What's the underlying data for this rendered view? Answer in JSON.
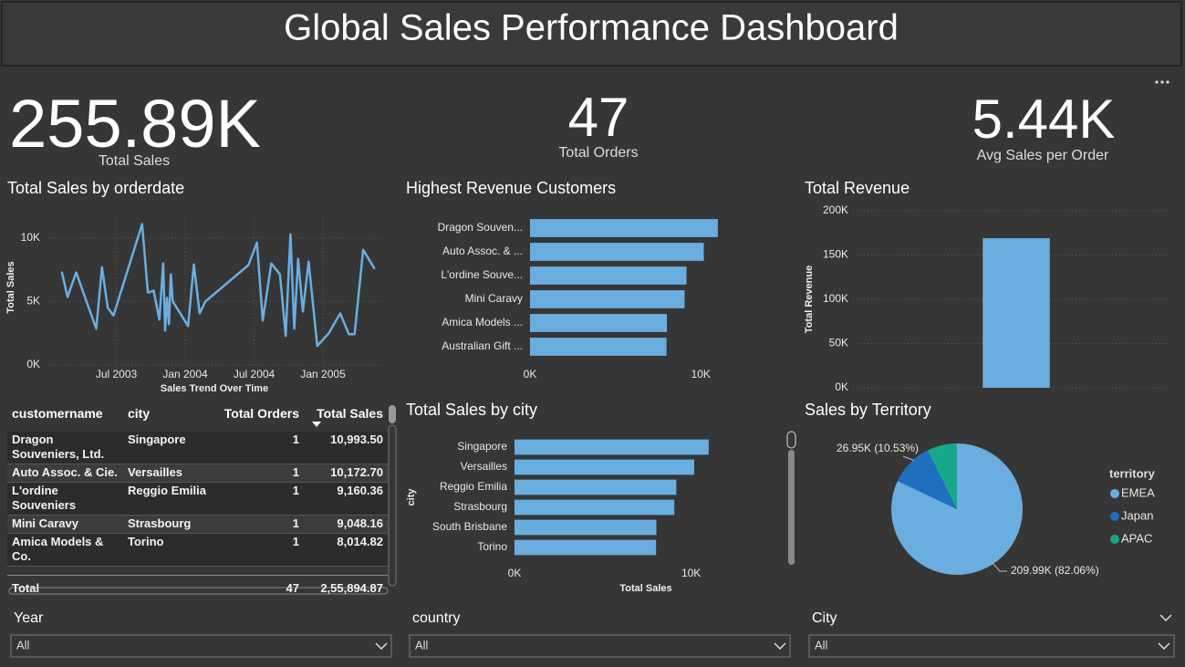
{
  "header": {
    "title": "Global Sales Performance Dashboard"
  },
  "kpis": [
    {
      "value": "255.89K",
      "label": "Total Sales"
    },
    {
      "value": "47",
      "label": "Total Orders"
    },
    {
      "value": "5.44K",
      "label": "Avg Sales per Order"
    }
  ],
  "chart_data": [
    {
      "type": "line",
      "title": "Total Sales by orderdate",
      "x_label": "Sales Trend Over Time",
      "y_label": "Total Sales",
      "color": "#6aaee0",
      "grid": true,
      "x": [
        "2003-02",
        "2003-02",
        "2003-03",
        "2003-05",
        "2003-05",
        "2003-06",
        "2003-06",
        "2003-09",
        "2003-09",
        "2003-10",
        "2003-10",
        "2003-11",
        "2003-11",
        "2003-11",
        "2003-11",
        "2003-11",
        "2003-11",
        "2004-01",
        "2004-01",
        "2004-02",
        "2004-02",
        "2004-06",
        "2004-07",
        "2004-07",
        "2004-08",
        "2004-09",
        "2004-09",
        "2004-10",
        "2004-10",
        "2004-10",
        "2004-11",
        "2004-11",
        "2004-12",
        "2005-01",
        "2005-02",
        "2005-03",
        "2005-03",
        "2005-04",
        "2005-05"
      ],
      "values": [
        7360,
        5360,
        7290,
        2860,
        7700,
        4500,
        3900,
        11100,
        5700,
        5860,
        3570,
        8000,
        2710,
        5290,
        3210,
        7140,
        5000,
        3070,
        7930,
        4070,
        5000,
        7860,
        9640,
        3500,
        8000,
        7140,
        2290,
        10290,
        2860,
        8360,
        4210,
        8140,
        1500,
        2500,
        4070,
        2430,
        2430,
        9070,
        7570
      ],
      "xlim": [
        "2003-01",
        "2005-06"
      ],
      "xticks": [
        {
          "value": "2003-07",
          "label": "Jul 2003"
        },
        {
          "value": "2004-01",
          "label": "Jan 2004"
        },
        {
          "value": "2004-07",
          "label": "Jul 2004"
        },
        {
          "value": "2005-01",
          "label": "Jan 2005"
        }
      ],
      "ylim": [
        0,
        11500
      ],
      "yticks": [
        {
          "value": 0,
          "label": "0K"
        },
        {
          "value": 5000,
          "label": "5K"
        },
        {
          "value": 10000,
          "label": "10K"
        }
      ]
    },
    {
      "type": "bar",
      "orientation": "horizontal",
      "title": "Highest Revenue Customers",
      "color": "#6aaee0",
      "grid": false,
      "categories": [
        "Dragon Souven...",
        "Auto Assoc. & ...",
        "L'ordine Souve...",
        "Mini Caravy",
        "Amica Models ...",
        "Australian Gift ..."
      ],
      "values": [
        10993.5,
        10172.7,
        9160.36,
        9048.16,
        8014.82,
        7990
      ],
      "xlim": [
        0,
        11000
      ],
      "xticks": [
        {
          "value": 0,
          "label": "0K"
        },
        {
          "value": 10000,
          "label": "10K"
        }
      ]
    },
    {
      "type": "bar",
      "orientation": "vertical",
      "title": "Total Revenue",
      "y_label": "Total Revenue",
      "color": "#6aaee0",
      "grid": true,
      "categories": [
        null
      ],
      "values": [
        169000
      ],
      "ylim": [
        0,
        200000
      ],
      "yticks": [
        {
          "value": 0,
          "label": "0K"
        },
        {
          "value": 50000,
          "label": "50K"
        },
        {
          "value": 100000,
          "label": "100K"
        },
        {
          "value": 150000,
          "label": "150K"
        },
        {
          "value": 200000,
          "label": "200K"
        }
      ]
    },
    {
      "type": "bar",
      "orientation": "horizontal",
      "title": "Total Sales by city",
      "x_label": "Total Sales",
      "y_label": "city",
      "color": "#6aaee0",
      "grid": false,
      "categories": [
        "Singapore",
        "Versailles",
        "Reggio Emilia",
        "Strasbourg",
        "South Brisbane",
        "Torino"
      ],
      "values": [
        10993.5,
        10172.7,
        9160.36,
        9048.16,
        8030,
        8014.82
      ],
      "xlim": [
        0,
        11000
      ],
      "xticks": [
        {
          "value": 0,
          "label": "0K"
        },
        {
          "value": 10000,
          "label": "10K"
        }
      ]
    },
    {
      "type": "pie",
      "title": "Sales by Territory",
      "legend": "right",
      "legend_title": "territory",
      "categories": [
        "EMEA",
        "Japan",
        "APAC"
      ],
      "values": [
        209990,
        26950,
        18950
      ],
      "value_labels": [
        "209.99K (82.06%)",
        "26.95K (10.53%)",
        null
      ],
      "colors": [
        "#6aaee0",
        "#1f6fbf",
        "#17a88c"
      ]
    }
  ],
  "table": {
    "columns": [
      "customername",
      "city",
      "Total Orders",
      "Total Sales"
    ],
    "rows": [
      [
        "Dragon Souveniers, Ltd.",
        "Singapore",
        "1",
        "10,993.50"
      ],
      [
        "Auto Assoc. & Cie.",
        "Versailles",
        "1",
        "10,172.70"
      ],
      [
        "L'ordine Souveniers",
        "Reggio Emilia",
        "1",
        "9,160.36"
      ],
      [
        "Mini Caravy",
        "Strasbourg",
        "1",
        "9,048.16"
      ],
      [
        "Amica Models & Co.",
        "Torino",
        "1",
        "8,014.82"
      ]
    ],
    "total": [
      "Total",
      "",
      "47",
      "2,55,894.87"
    ]
  },
  "slicers": [
    {
      "label": "Year",
      "value": "All"
    },
    {
      "label": "country",
      "value": "All"
    },
    {
      "label": "City",
      "value": "All"
    }
  ]
}
